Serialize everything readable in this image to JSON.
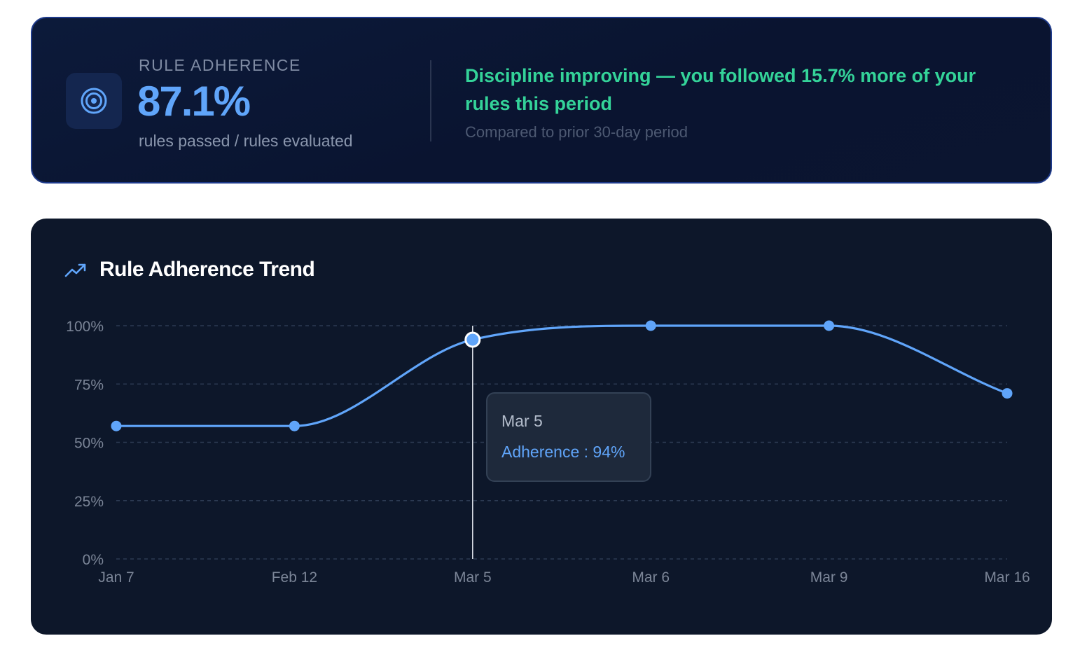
{
  "summary": {
    "metric_label": "RULE ADHERENCE",
    "metric_value": "87.1%",
    "metric_sub": "rules passed / rules evaluated",
    "icon": "target-icon",
    "trend_message": "Discipline improving — you followed 15.7% more of your rules this period",
    "trend_note": "Compared to prior 30-day period"
  },
  "colors": {
    "accent": "#60a5fa",
    "positive": "#34d399",
    "card_bg": "#0d172a",
    "grid": "#2c3a52"
  },
  "chart": {
    "title": "Rule Adherence Trend",
    "icon": "trending-up-icon"
  },
  "chart_data": {
    "type": "line",
    "title": "Rule Adherence Trend",
    "xlabel": "",
    "ylabel": "",
    "x": [
      "Jan 7",
      "Feb 12",
      "Mar 5",
      "Mar 6",
      "Mar 9",
      "Mar 16"
    ],
    "series": [
      {
        "values": [
          57,
          57,
          94,
          100,
          100,
          71
        ]
      }
    ],
    "y_ticks": [
      "0%",
      "25%",
      "50%",
      "75%",
      "100%"
    ],
    "ylim": [
      0,
      100
    ],
    "grid": true,
    "highlight_index": 2
  },
  "tooltip": {
    "date": "Mar 5",
    "value_text": "Adherence : 94%"
  }
}
